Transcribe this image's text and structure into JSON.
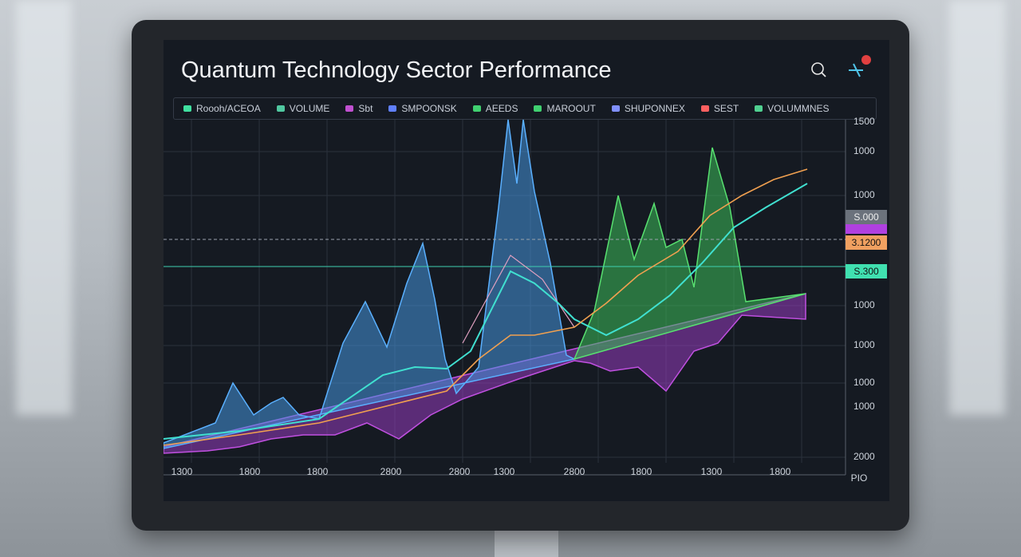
{
  "title": "Quantum Technology Sector Performance",
  "legend": [
    {
      "label": "Roooh/ACEOA",
      "color": "#40e0a0"
    },
    {
      "label": "VOLUME",
      "color": "#50c8a0"
    },
    {
      "label": "Sbt",
      "color": "#c050d0"
    },
    {
      "label": "SMPOONSK",
      "color": "#6080ff"
    },
    {
      "label": "AEEDS",
      "color": "#40d070"
    },
    {
      "label": "MAROOUT",
      "color": "#40d070"
    },
    {
      "label": "SHUPONNEX",
      "color": "#8090ff"
    },
    {
      "label": "SEST",
      "color": "#ff6060"
    },
    {
      "label": "VOLUMMNES",
      "color": "#50d090"
    }
  ],
  "y_axis_labels": [
    "1500",
    "1000",
    "1000",
    "1000",
    "1000",
    "1000",
    "1000",
    "2000"
  ],
  "x_axis_labels": [
    "1300",
    "1800",
    "1800",
    "2800",
    "2800",
    "1300",
    "2800",
    "1800",
    "1300",
    "1800"
  ],
  "x_axis_unit": "PIO",
  "price_tags": [
    "S.000",
    "3.1200",
    "S.300"
  ]
}
